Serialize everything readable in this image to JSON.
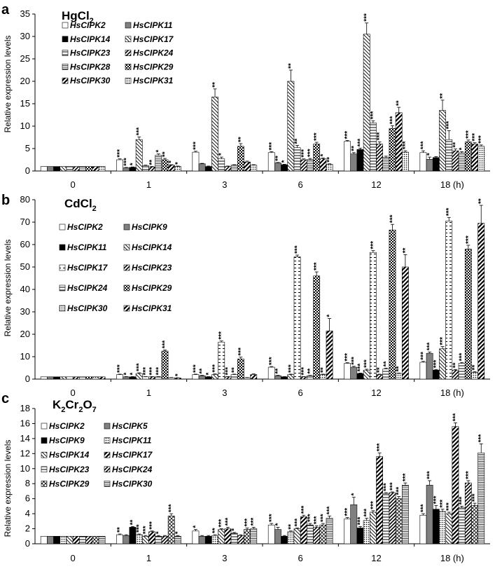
{
  "figure": {
    "panels": [
      {
        "letter": "a",
        "title_main": "HgCl",
        "title_sub": "2",
        "ylabel": "Relative expression levels"
      },
      {
        "letter": "b",
        "title_main": "CdCl",
        "title_sub": "2",
        "ylabel": "Relative expression levels"
      },
      {
        "letter": "c",
        "title_parts": [
          "K",
          "2",
          "Cr",
          "2",
          "O",
          "7"
        ],
        "ylabel": "Relative expression levels"
      }
    ]
  },
  "chart_data": [
    {
      "type": "bar",
      "title": "HgCl2",
      "ylabel": "Relative expression levels",
      "ylim": [
        0,
        35
      ],
      "yticks": [
        0,
        5,
        10,
        15,
        20,
        25,
        30,
        35
      ],
      "categories": [
        "0",
        "1",
        "3",
        "6",
        "12",
        "18 (h)"
      ],
      "legend_position": "top-left",
      "series": [
        {
          "name": "HsCIPK2",
          "pattern": "white",
          "values": [
            1,
            2.5,
            4.2,
            4.1,
            6.6,
            4.1
          ],
          "errors": [
            0,
            0.2,
            0.2,
            0.2,
            0.2,
            0.4
          ],
          "sig": [
            "",
            "***",
            "***",
            "***",
            "***",
            "***"
          ]
        },
        {
          "name": "HsCIPK11",
          "pattern": "gray",
          "values": [
            1,
            0.7,
            1.6,
            1.8,
            3.8,
            2.6
          ],
          "errors": [
            0,
            0.1,
            0.1,
            0.1,
            0.3,
            0.5
          ],
          "sig": [
            "",
            "***",
            "",
            "**",
            "**",
            "*"
          ]
        },
        {
          "name": "HsCIPK14",
          "pattern": "black",
          "values": [
            1,
            0.8,
            1.0,
            1.4,
            4.8,
            3.0
          ],
          "errors": [
            0,
            0.1,
            0.1,
            0.1,
            0.3,
            0.2
          ],
          "sig": [
            "",
            "*",
            "",
            "*",
            "***",
            ""
          ]
        },
        {
          "name": "HsCIPK17",
          "pattern": "diagback",
          "values": [
            1,
            7.0,
            16.5,
            20.0,
            30.5,
            13.5
          ],
          "errors": [
            0,
            0.6,
            1.8,
            2.5,
            2.5,
            2.3
          ],
          "sig": [
            "",
            "***",
            "**",
            "**",
            "***",
            "**"
          ]
        },
        {
          "name": "HsCIPK23",
          "pattern": "hlines",
          "values": [
            1,
            1.2,
            2.7,
            5.2,
            10.7,
            7.0
          ],
          "errors": [
            0,
            0.1,
            0.4,
            0.5,
            0.5,
            2.0
          ],
          "sig": [
            "",
            "",
            "*",
            "**",
            "***",
            "***"
          ]
        },
        {
          "name": "HsCIPK24",
          "pattern": "diagfwd",
          "values": [
            1,
            0.9,
            1.0,
            2.5,
            6.0,
            4.5
          ],
          "errors": [
            0,
            0.1,
            0.1,
            0.2,
            0.5,
            0.4
          ],
          "sig": [
            "",
            "**",
            "",
            "***",
            "***",
            "**"
          ]
        },
        {
          "name": "HsCIPK28",
          "pattern": "hlines2",
          "values": [
            1,
            3.5,
            1.3,
            2.5,
            3.0,
            4.0
          ],
          "errors": [
            0,
            0.3,
            0.1,
            0.3,
            0.3,
            0.3
          ],
          "sig": [
            "",
            "*",
            "",
            "***",
            "",
            "*"
          ]
        },
        {
          "name": "HsCIPK29",
          "pattern": "checker",
          "values": [
            1,
            2.5,
            5.5,
            6.0,
            9.5,
            6.5
          ],
          "errors": [
            0,
            0.3,
            0.6,
            0.4,
            0.6,
            0.4
          ],
          "sig": [
            "",
            "**",
            "**",
            "***",
            "***",
            "***"
          ]
        },
        {
          "name": "HsCIPK30",
          "pattern": "diagthick",
          "values": [
            1,
            1.3,
            2.0,
            2.7,
            13.0,
            6.0
          ],
          "errors": [
            0,
            0.1,
            0.2,
            0.2,
            1.2,
            0.3
          ],
          "sig": [
            "",
            "*",
            "",
            "*",
            "**",
            "***"
          ]
        },
        {
          "name": "HsCIPK31",
          "pattern": "dots",
          "values": [
            1,
            1.0,
            1.3,
            1.5,
            4.2,
            5.5
          ],
          "errors": [
            0,
            0.1,
            0.1,
            0.1,
            0.3,
            0.3
          ],
          "sig": [
            "",
            "*",
            "",
            "**",
            "***",
            "***"
          ]
        }
      ]
    },
    {
      "type": "bar",
      "title": "CdCl2",
      "ylabel": "Relative expression levels",
      "ylim": [
        0,
        80
      ],
      "yticks": [
        0,
        10,
        20,
        30,
        40,
        50,
        60,
        70,
        80
      ],
      "categories": [
        "0",
        "1",
        "3",
        "6",
        "12",
        "18 (h)"
      ],
      "legend_position": "top-left",
      "series": [
        {
          "name": "HsCIPK2",
          "pattern": "white",
          "values": [
            1,
            2.0,
            2.0,
            5.3,
            7.0,
            7.5
          ],
          "errors": [
            0,
            0.2,
            0.2,
            0.3,
            0.3,
            0.4
          ],
          "sig": [
            "",
            "***",
            "***",
            "***",
            "***",
            "***"
          ]
        },
        {
          "name": "HsCIPK9",
          "pattern": "gray",
          "values": [
            1,
            1.0,
            1.5,
            1.5,
            5.3,
            11.5
          ],
          "errors": [
            0,
            0.1,
            0.2,
            0.2,
            0.4,
            0.6
          ],
          "sig": [
            "",
            "*",
            "**",
            "**",
            "***",
            "***"
          ]
        },
        {
          "name": "HsCIPK11",
          "pattern": "black",
          "values": [
            1,
            1.0,
            1.0,
            1.0,
            2.5,
            4.0
          ],
          "errors": [
            0,
            0.1,
            0.1,
            0.1,
            0.2,
            0.3
          ],
          "sig": [
            "",
            "*",
            "*",
            "",
            "***",
            "***"
          ]
        },
        {
          "name": "HsCIPK14",
          "pattern": "diagback",
          "values": [
            1,
            2.5,
            2.0,
            2.0,
            4.0,
            13.5
          ],
          "errors": [
            0,
            0.3,
            0.3,
            0.2,
            0.4,
            1.0
          ],
          "sig": [
            "",
            "***",
            "***",
            "***",
            "***",
            "***"
          ]
        },
        {
          "name": "HsCIPK17",
          "pattern": "dashes",
          "values": [
            1,
            1.0,
            16.5,
            54.5,
            56.5,
            70.5
          ],
          "errors": [
            0,
            0.1,
            0.5,
            0.8,
            0.8,
            1.6
          ],
          "sig": [
            "",
            "***",
            "***",
            "***",
            "***",
            "***"
          ]
        },
        {
          "name": "HsCIPK23",
          "pattern": "diagfwd",
          "values": [
            1,
            1.0,
            1.0,
            1.0,
            2.0,
            4.0
          ],
          "errors": [
            0,
            0.1,
            0.1,
            0.1,
            0.2,
            0.3
          ],
          "sig": [
            "",
            "***",
            "***",
            "***",
            "**",
            "**"
          ]
        },
        {
          "name": "HsCIPK24",
          "pattern": "hlines",
          "values": [
            1,
            1.0,
            2.0,
            1.5,
            4.5,
            7.0
          ],
          "errors": [
            0,
            0.1,
            0.2,
            0.2,
            0.4,
            0.4
          ],
          "sig": [
            "",
            "***",
            "**",
            "**",
            "**",
            "***"
          ]
        },
        {
          "name": "HsCIPK29",
          "pattern": "checker",
          "values": [
            1,
            12.5,
            9.0,
            46.0,
            66.5,
            58.0
          ],
          "errors": [
            0,
            0.5,
            0.8,
            1.8,
            2.5,
            1.7
          ],
          "sig": [
            "",
            "***",
            "***",
            "***",
            "***",
            "***"
          ]
        },
        {
          "name": "HsCIPK30",
          "pattern": "dots",
          "values": [
            1,
            0.6,
            0.6,
            2.0,
            2.5,
            3.0
          ],
          "errors": [
            0,
            0.1,
            0.1,
            0.2,
            0.2,
            0.3
          ],
          "sig": [
            "",
            "",
            "",
            "**",
            "**",
            "**"
          ]
        },
        {
          "name": "HsCIPK31",
          "pattern": "diagthick",
          "values": [
            1,
            0.5,
            2.0,
            21.5,
            50.0,
            69.5
          ],
          "errors": [
            0,
            0.1,
            0.3,
            5.5,
            5.5,
            8.0
          ],
          "sig": [
            "",
            "*",
            "",
            "*",
            "**",
            "**"
          ]
        }
      ]
    },
    {
      "type": "bar",
      "title": "K2Cr2O7",
      "ylabel": "Relative expression levels",
      "ylim": [
        0,
        18
      ],
      "yticks": [
        0,
        2,
        4,
        6,
        8,
        10,
        12,
        14,
        16,
        18
      ],
      "categories": [
        "0",
        "1",
        "3",
        "6",
        "12",
        "18 (h)"
      ],
      "legend_position": "top-left",
      "series": [
        {
          "name": "HsCIPK2",
          "pattern": "white",
          "values": [
            1,
            1.2,
            1.7,
            2.5,
            3.3,
            3.8
          ],
          "errors": [
            0,
            0.1,
            0.2,
            0.2,
            0.2,
            0.2
          ],
          "sig": [
            "",
            "**",
            "*",
            "***",
            "***",
            "***"
          ]
        },
        {
          "name": "HsCIPK5",
          "pattern": "gray",
          "values": [
            1,
            1.1,
            1.0,
            1.9,
            5.2,
            7.8
          ],
          "errors": [
            0,
            0.1,
            0.1,
            0.3,
            1.0,
            0.6
          ],
          "sig": [
            "",
            "",
            "",
            "*",
            "*",
            "***"
          ]
        },
        {
          "name": "HsCIPK9",
          "pattern": "black",
          "values": [
            1,
            2.2,
            1.0,
            1.0,
            2.1,
            4.6
          ],
          "errors": [
            0,
            0.1,
            0.1,
            0.1,
            0.2,
            0.5
          ],
          "sig": [
            "",
            "**",
            "",
            "",
            "***",
            "***"
          ]
        },
        {
          "name": "HsCIPK11",
          "pattern": "dots",
          "values": [
            1,
            1.2,
            1.1,
            1.6,
            3.1,
            4.3
          ],
          "errors": [
            0,
            0.1,
            0.1,
            0.1,
            0.3,
            0.3
          ],
          "sig": [
            "",
            "***",
            "**",
            "**",
            "***",
            "***"
          ]
        },
        {
          "name": "HsCIPK14",
          "pattern": "diagback",
          "values": [
            1,
            1.0,
            1.9,
            2.0,
            4.2,
            4.0
          ],
          "errors": [
            0,
            0.1,
            0.1,
            0.1,
            0.2,
            0.2
          ],
          "sig": [
            "",
            "***",
            "***",
            "***",
            "***",
            "***"
          ]
        },
        {
          "name": "HsCIPK17",
          "pattern": "diagthick",
          "values": [
            1,
            1.6,
            2.0,
            3.6,
            11.6,
            15.6
          ],
          "errors": [
            0,
            0.1,
            0.2,
            0.2,
            0.5,
            0.5
          ],
          "sig": [
            "",
            "***",
            "***",
            "***",
            "***",
            "***"
          ]
        },
        {
          "name": "HsCIPK23",
          "pattern": "hlines",
          "values": [
            1,
            1.0,
            1.4,
            2.5,
            6.7,
            4.8
          ],
          "errors": [
            0,
            0.1,
            0.1,
            0.2,
            0.1,
            0.2
          ],
          "sig": [
            "",
            "*",
            "*",
            "***",
            "***",
            "***"
          ]
        },
        {
          "name": "HsCIPK24",
          "pattern": "diagfwd",
          "values": [
            1,
            1.0,
            1.1,
            2.2,
            6.8,
            8.1
          ],
          "errors": [
            0,
            0.1,
            0.1,
            0.2,
            0.1,
            0.3
          ],
          "sig": [
            "",
            "",
            "",
            "***",
            "***",
            "***"
          ]
        },
        {
          "name": "HsCIPK29",
          "pattern": "crosshatch",
          "values": [
            1,
            3.7,
            1.9,
            2.5,
            6.0,
            5.1
          ],
          "errors": [
            0,
            0.3,
            0.2,
            0.2,
            0.3,
            0.3
          ],
          "sig": [
            "",
            "***",
            "***",
            "***",
            "***",
            "***"
          ]
        },
        {
          "name": "HsCIPK30",
          "pattern": "hlines2",
          "values": [
            1,
            1.0,
            2.0,
            3.4,
            7.8,
            12.1
          ],
          "errors": [
            0,
            0.1,
            0.2,
            0.3,
            0.3,
            1.2
          ],
          "sig": [
            "",
            "*",
            "***",
            "***",
            "***",
            "***"
          ]
        }
      ]
    }
  ]
}
